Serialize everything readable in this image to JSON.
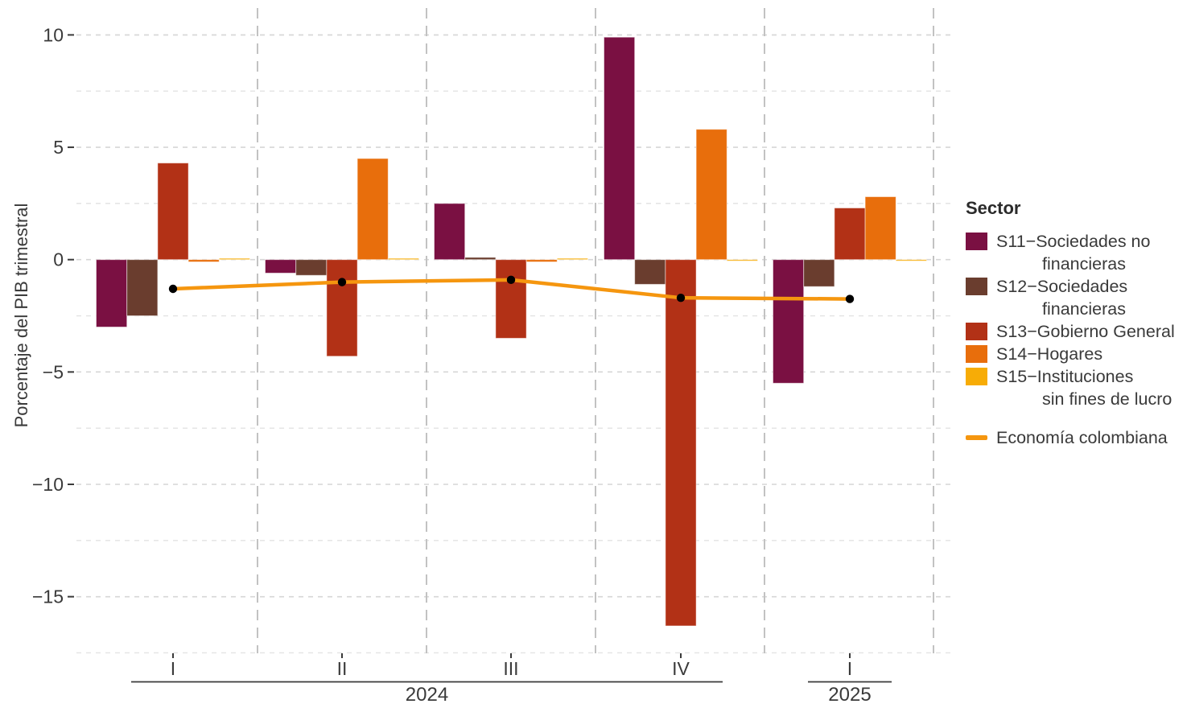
{
  "legend": {
    "title": "Sector",
    "items": [
      {
        "id": "S11",
        "line1": "S11−Sociedades no",
        "line2": "financieras",
        "color": "#7A1042"
      },
      {
        "id": "S12",
        "line1": "S12−Sociedades",
        "line2": "financieras",
        "color": "#6A3D2E"
      },
      {
        "id": "S13",
        "line1": "S13−Gobierno General",
        "line2": "",
        "color": "#B23116"
      },
      {
        "id": "S14",
        "line1": "S14−Hogares",
        "line2": "",
        "color": "#E86E0C"
      },
      {
        "id": "S15",
        "line1": "S15−Instituciones",
        "line2": "sin fines de lucro",
        "color": "#F7AC06"
      }
    ],
    "line_item": {
      "label": "Economía colombiana",
      "color": "#F5960F"
    }
  },
  "chart_data": {
    "type": "bar",
    "title": "",
    "xlabel": "",
    "ylabel": "Porcentaje del PIB trimestral",
    "categories": [
      "I",
      "II",
      "III",
      "IV",
      "I"
    ],
    "year_groups": [
      {
        "label": "2024",
        "from": 0,
        "to": 3
      },
      {
        "label": "2025",
        "from": 4,
        "to": 4
      }
    ],
    "series": [
      {
        "name": "S11−Sociedades no financieras",
        "color": "#7A1042",
        "values": [
          -3.0,
          -0.6,
          2.5,
          9.9,
          -5.5
        ]
      },
      {
        "name": "S12−Sociedades financieras",
        "color": "#6A3D2E",
        "values": [
          -2.5,
          -0.7,
          0.1,
          -1.1,
          -1.2
        ]
      },
      {
        "name": "S13−Gobierno General",
        "color": "#B23116",
        "values": [
          4.3,
          -4.3,
          -3.5,
          -16.3,
          2.3
        ]
      },
      {
        "name": "S14−Hogares",
        "color": "#E86E0C",
        "values": [
          -0.1,
          4.5,
          -0.1,
          5.8,
          2.8
        ]
      },
      {
        "name": "S15−Instituciones sin fines de lucro",
        "color": "#F7AC06",
        "values": [
          0.05,
          0.05,
          0.05,
          -0.05,
          -0.05
        ]
      }
    ],
    "line_series": {
      "name": "Economía colombiana",
      "color": "#F5960F",
      "point_color": "#000000",
      "values": [
        -1.3,
        -1.0,
        -0.9,
        -1.7,
        -1.75
      ]
    },
    "y_axis": {
      "ticks": [
        10,
        5,
        0,
        -5,
        -10,
        -15
      ],
      "tick_labels": [
        "10",
        "5",
        "0",
        "−5",
        "−10",
        "−15"
      ],
      "minor_step": 2.5,
      "range": [
        -17.5,
        11.2
      ],
      "grid": true
    },
    "legend_position": "right",
    "text_color": "#3a3a3a"
  }
}
